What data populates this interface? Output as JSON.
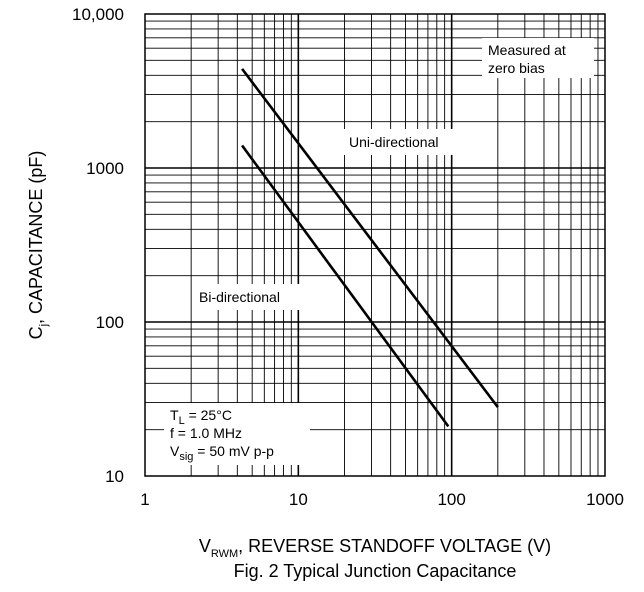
{
  "chart_data": {
    "type": "line",
    "x_scale": "log",
    "y_scale": "log",
    "xlim": [
      1,
      1000
    ],
    "ylim": [
      10,
      10000
    ],
    "grid": true,
    "x_ticks": [
      "1",
      "10",
      "100",
      "1000"
    ],
    "y_ticks": [
      "10",
      "100",
      "1000",
      "10,000"
    ],
    "xlabel": {
      "prefix": "V",
      "subscript": "RWM",
      "rest": ", REVERSE STANDOFF VOLTAGE (V)"
    },
    "ylabel": {
      "prefix": "C",
      "subscript": "j",
      "rest": ", CAPACITANCE (pF)"
    },
    "caption": "Fig. 2  Typical Junction Capacitance",
    "series": [
      {
        "name": "Uni-directional",
        "x": [
          4.3,
          200
        ],
        "y": [
          4400,
          28
        ]
      },
      {
        "name": "Bi-directional",
        "x": [
          4.3,
          95
        ],
        "y": [
          1400,
          21
        ]
      }
    ],
    "annotations": {
      "measured_line1": "Measured at",
      "measured_line2": "zero bias",
      "conditions": [
        {
          "prefix": "T",
          "subscript": "L",
          "rest": " = 25°C"
        },
        {
          "prefix": "",
          "subscript": "",
          "rest": "f = 1.0 MHz"
        },
        {
          "prefix": "V",
          "subscript": "sig",
          "rest": " = 50 mV p-p"
        }
      ]
    }
  }
}
